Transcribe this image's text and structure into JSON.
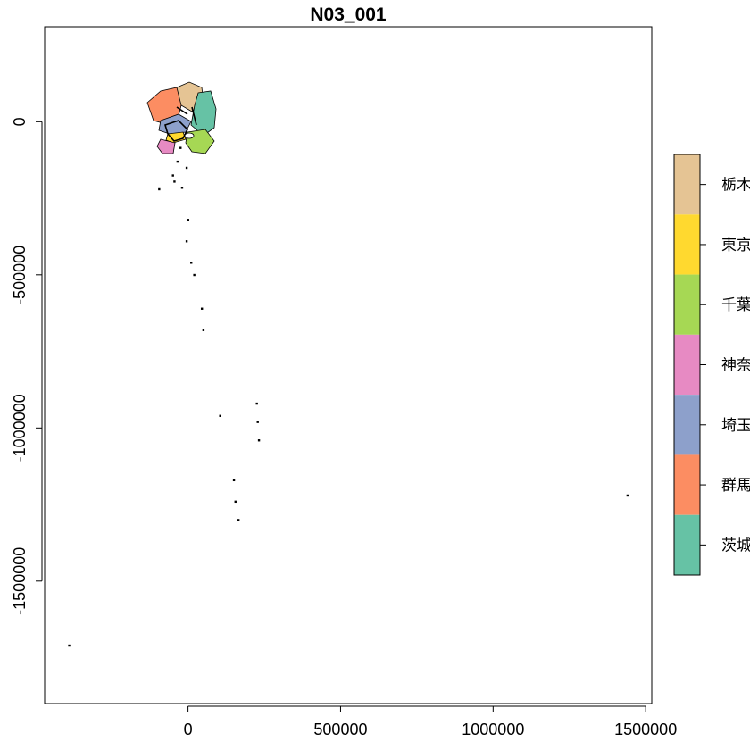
{
  "title": "N03_001",
  "colors": {
    "background": "#ffffff",
    "frame": "#000000",
    "island": "#000000"
  },
  "chart_data": {
    "type": "map",
    "xlim": [
      -470000,
      1520000
    ],
    "ylim": [
      -1900000,
      310000
    ],
    "x_ticks": [
      {
        "value": 0,
        "label": "0"
      },
      {
        "value": 500000,
        "label": "500000"
      },
      {
        "value": 1000000,
        "label": "1000000"
      },
      {
        "value": 1500000,
        "label": "1500000"
      }
    ],
    "y_ticks": [
      {
        "value": 0,
        "label": "0"
      },
      {
        "value": -500000,
        "label": "-500000"
      },
      {
        "value": -1000000,
        "label": "-1000000"
      },
      {
        "value": -1500000,
        "label": "-1500000"
      }
    ],
    "legend": {
      "placement": "right",
      "entries": [
        {
          "label": "栃木",
          "color": "#E5C494"
        },
        {
          "label": "東京",
          "color": "#FFD92F"
        },
        {
          "label": "千葉",
          "color": "#A6D854"
        },
        {
          "label": "神奈",
          "color": "#E78AC3"
        },
        {
          "label": "埼玉",
          "color": "#8DA0CB"
        },
        {
          "label": "群馬",
          "color": "#FC8D62"
        },
        {
          "label": "茨城",
          "color": "#66C2A5"
        }
      ]
    },
    "islands": [
      [
        -35000,
        -130000
      ],
      [
        -50000,
        -175000
      ],
      [
        -95000,
        -220000
      ],
      [
        -20000,
        -215000
      ],
      [
        0,
        -320000
      ],
      [
        -5000,
        -390000
      ],
      [
        10000,
        -460000
      ],
      [
        20000,
        -500000
      ],
      [
        45000,
        -610000
      ],
      [
        50000,
        -680000
      ],
      [
        105000,
        -960000
      ],
      [
        225000,
        -920000
      ],
      [
        228000,
        -980000
      ],
      [
        232000,
        -1040000
      ],
      [
        150000,
        -1170000
      ],
      [
        155000,
        -1240000
      ],
      [
        165000,
        -1300000
      ],
      [
        1440000,
        -1220000
      ],
      [
        -390000,
        -1710000
      ],
      [
        -5000,
        -150000
      ],
      [
        -25000,
        -85000
      ],
      [
        -45000,
        -195000
      ]
    ]
  }
}
